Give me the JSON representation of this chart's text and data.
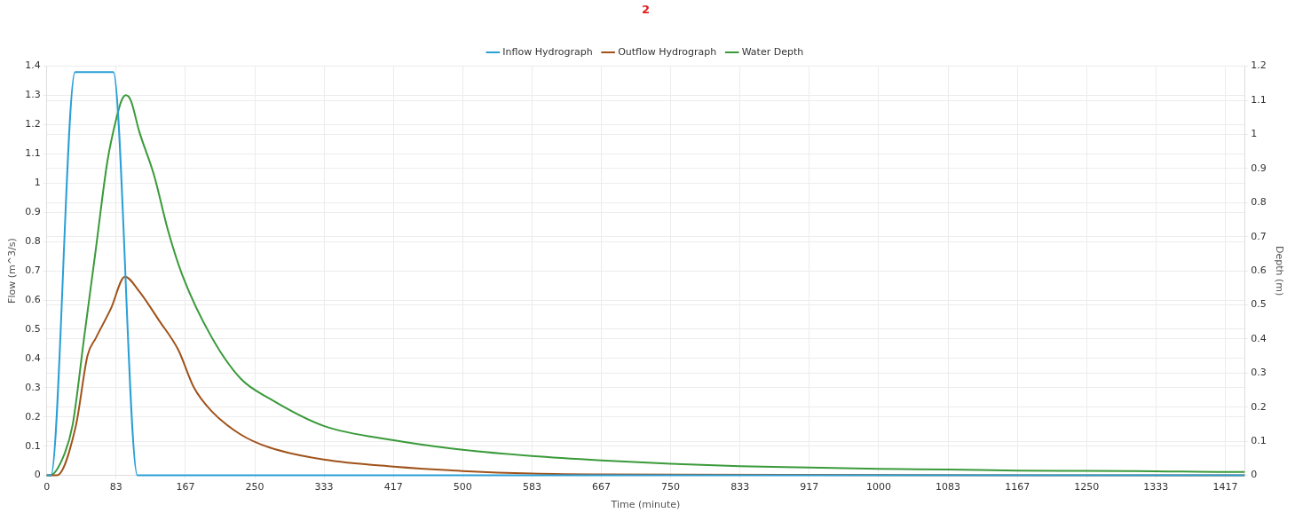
{
  "chart_data": {
    "type": "line",
    "title": "2",
    "xlabel": "Time (minute)",
    "ylabel": "Flow (m^3/s)",
    "y2label": "Depth (m)",
    "xlim": [
      0,
      1440
    ],
    "xticks": [
      0,
      {
        "value": 83.33,
        "label": "83"
      },
      {
        "value": 166.67,
        "label": "167"
      },
      250,
      {
        "value": 333.33,
        "label": "333"
      },
      {
        "value": 416.67,
        "label": "417"
      },
      500,
      {
        "value": 583.33,
        "label": "583"
      },
      {
        "value": 666.67,
        "label": "667"
      },
      750,
      {
        "value": 833.33,
        "label": "833"
      },
      {
        "value": 916.67,
        "label": "917"
      },
      1000,
      {
        "value": 1083.33,
        "label": "1083"
      },
      {
        "value": 1166.67,
        "label": "1167"
      },
      1250,
      {
        "value": 1333.33,
        "label": "1333"
      },
      {
        "value": 1416.67,
        "label": "1417"
      }
    ],
    "ylim": [
      0,
      1.4
    ],
    "yticks": [
      0,
      0.1,
      0.2,
      0.3,
      0.4,
      0.5,
      0.6,
      0.7,
      0.8,
      0.9,
      1,
      1.1,
      1.2,
      1.3,
      1.4
    ],
    "y2lim": [
      0,
      1.2
    ],
    "y2ticks": [
      0,
      0.1,
      0.2,
      0.3,
      0.4,
      0.5,
      0.6,
      0.7,
      0.8,
      0.9,
      1,
      1.1,
      1.2
    ],
    "grid": true,
    "legend": "top",
    "marker": "none",
    "line_style": "solid",
    "series": [
      {
        "name": "Inflow Hydrograph",
        "color": "#2a9fd6",
        "x": [
          0,
          5,
          34,
          80,
          109,
          1440
        ],
        "values": [
          0,
          0,
          1.38,
          1.38,
          0,
          0
        ]
      },
      {
        "name": "Outflow Hydrograph",
        "color": "#a0521a",
        "x": [
          0,
          12,
          35,
          49,
          59,
          77,
          94,
          111,
          135,
          158,
          177,
          198,
          233,
          268,
          333,
          417,
          500,
          583,
          667,
          1440
        ],
        "values": [
          0,
          0,
          0.17,
          0.41,
          0.47,
          0.57,
          0.68,
          0.63,
          0.53,
          0.43,
          0.3,
          0.22,
          0.14,
          0.095,
          0.054,
          0.03,
          0.015,
          0.006,
          0.003,
          0
        ]
      },
      {
        "name": "Water Depth",
        "color": "#3a9a3a",
        "axis": "y2",
        "x": [
          0,
          4,
          18,
          31,
          45,
          59,
          73,
          84,
          90,
          95,
          101,
          111,
          129,
          146,
          163,
          198,
          233,
          268,
          333,
          417,
          500,
          583,
          667,
          750,
          833,
          917,
          1000,
          1083,
          1167,
          1250,
          1333,
          1417,
          1440
        ],
        "values": [
          0,
          0,
          0.044,
          0.147,
          0.406,
          0.664,
          0.923,
          1.05,
          1.1,
          1.115,
          1.1,
          1.01,
          0.88,
          0.716,
          0.587,
          0.406,
          0.284,
          0.225,
          0.145,
          0.103,
          0.075,
          0.057,
          0.044,
          0.034,
          0.027,
          0.023,
          0.019,
          0.017,
          0.014,
          0.013,
          0.012,
          0.01,
          0.01
        ]
      }
    ]
  }
}
